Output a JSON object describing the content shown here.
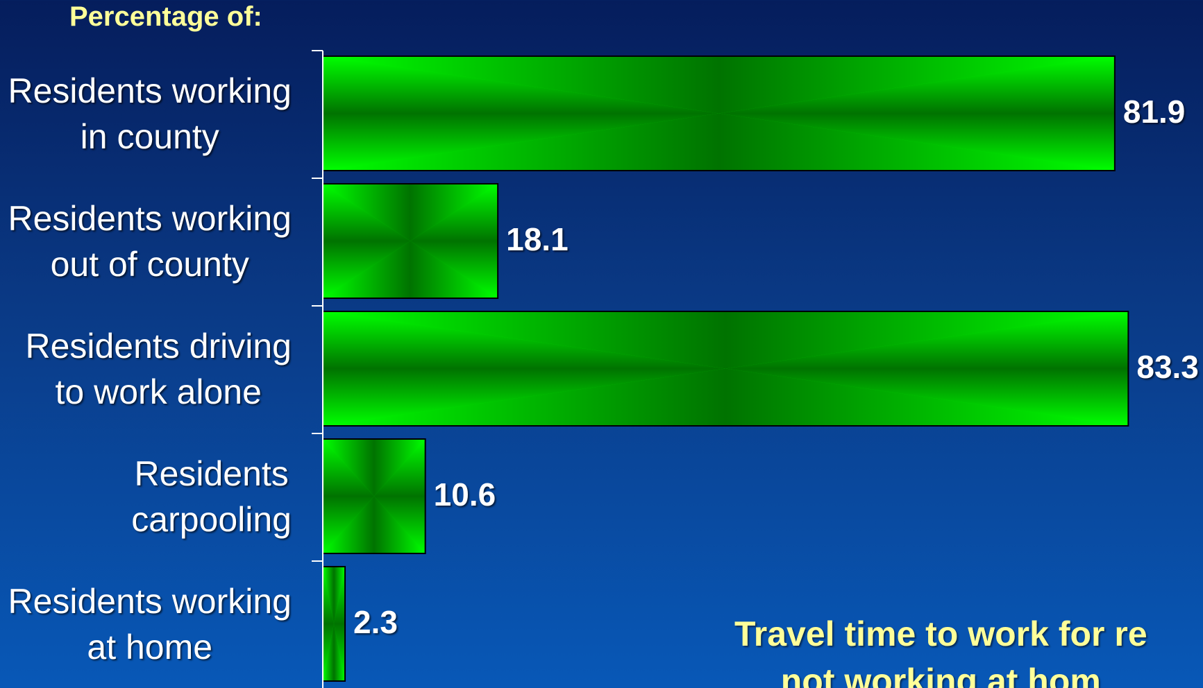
{
  "heading": "Percentage of:",
  "note": "Travel time to work for re\nnot working at hom",
  "colors": {
    "bar_fill": "#00ff00",
    "bar_center": "#000000",
    "heading_text": "#ffff99",
    "label_text": "#ffffff"
  },
  "chart_data": {
    "type": "bar",
    "orientation": "horizontal",
    "title": "",
    "xlabel": "",
    "ylabel": "",
    "xlim": [
      0,
      100
    ],
    "categories": [
      "Residents working\nin county",
      "Residents working\nout of county",
      "Residents driving\nto work alone",
      "Residents\ncarpooling",
      "Residents working\nat home"
    ],
    "values": [
      81.9,
      18.1,
      83.3,
      10.6,
      2.3
    ],
    "value_labels": [
      "81.9",
      "18.1",
      "83.3",
      "10.6",
      "2.3"
    ],
    "grid": false,
    "legend": "none"
  }
}
